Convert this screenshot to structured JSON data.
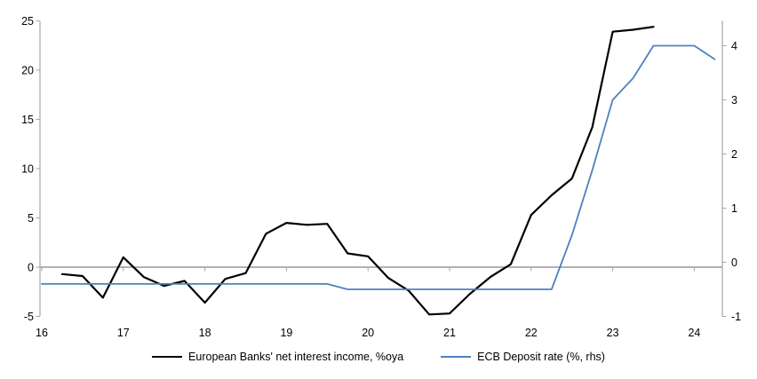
{
  "legend": {
    "items": [
      {
        "label": "European Banks' net interest income, %oya",
        "color": "#000000"
      },
      {
        "label": "ECB Deposit rate (%, rhs)",
        "color": "#4f81bd"
      }
    ]
  },
  "colors": {
    "axis": "#a6a6a6",
    "zero_line": "#a6a6a6",
    "tick_label": "#000000",
    "series_black": "#000000",
    "series_blue": "#4f81bd"
  },
  "chart_data": {
    "type": "line",
    "title": "",
    "xlabel": "",
    "ylabel_left": "",
    "ylabel_right": "",
    "grid": false,
    "legend_position": "bottom",
    "x_axis": {
      "tick_years": [
        2016,
        2017,
        2018,
        2019,
        2020,
        2021,
        2022,
        2023,
        2024
      ],
      "tick_labels": [
        "16",
        "17",
        "18",
        "19",
        "20",
        "21",
        "22",
        "23",
        "24"
      ],
      "range": [
        2016,
        2024.4
      ]
    },
    "left_axis": {
      "ticks": [
        -5,
        0,
        5,
        10,
        15,
        20,
        25
      ],
      "range": [
        -5,
        25
      ]
    },
    "right_axis": {
      "ticks": [
        -1,
        0,
        1,
        2,
        3,
        4
      ],
      "range": [
        -1,
        4.45
      ]
    },
    "series": [
      {
        "name": "European Banks' net interest income, %oya",
        "axis": "left",
        "color": "#000000",
        "width": 2.2,
        "x": [
          2016.25,
          2016.5,
          2016.75,
          2017.0,
          2017.25,
          2017.5,
          2017.75,
          2018.0,
          2018.25,
          2018.5,
          2018.75,
          2019.0,
          2019.25,
          2019.5,
          2019.75,
          2020.0,
          2020.25,
          2020.5,
          2020.75,
          2021.0,
          2021.25,
          2021.5,
          2021.75,
          2022.0,
          2022.25,
          2022.5,
          2022.75,
          2023.0,
          2023.25,
          2023.5
        ],
        "values": [
          -0.7,
          -0.9,
          -3.1,
          1.0,
          -1.0,
          -1.9,
          -1.4,
          -3.6,
          -1.2,
          -0.6,
          3.4,
          4.5,
          4.3,
          4.4,
          1.4,
          1.1,
          -1.1,
          -2.4,
          -4.8,
          -4.7,
          -2.7,
          -1.0,
          0.3,
          5.3,
          7.3,
          9.0,
          14.2,
          23.9,
          24.1,
          24.4
        ]
      },
      {
        "name": "ECB Deposit rate (%, rhs)",
        "axis": "right",
        "color": "#4f81bd",
        "width": 1.8,
        "x": [
          2016.0,
          2016.25,
          2016.5,
          2016.75,
          2017.0,
          2017.25,
          2017.5,
          2017.75,
          2018.0,
          2018.25,
          2018.5,
          2018.75,
          2019.0,
          2019.25,
          2019.5,
          2019.75,
          2020.0,
          2020.25,
          2020.5,
          2020.75,
          2021.0,
          2021.25,
          2021.5,
          2021.75,
          2022.0,
          2022.25,
          2022.5,
          2022.75,
          2023.0,
          2023.25,
          2023.5,
          2023.75,
          2024.0,
          2024.25
        ],
        "values": [
          -0.4,
          -0.4,
          -0.4,
          -0.4,
          -0.4,
          -0.4,
          -0.4,
          -0.4,
          -0.4,
          -0.4,
          -0.4,
          -0.4,
          -0.4,
          -0.4,
          -0.4,
          -0.5,
          -0.5,
          -0.5,
          -0.5,
          -0.5,
          -0.5,
          -0.5,
          -0.5,
          -0.5,
          -0.5,
          -0.5,
          0.5,
          1.7,
          3.0,
          3.4,
          4.0,
          4.0,
          4.0,
          3.75
        ]
      }
    ]
  }
}
